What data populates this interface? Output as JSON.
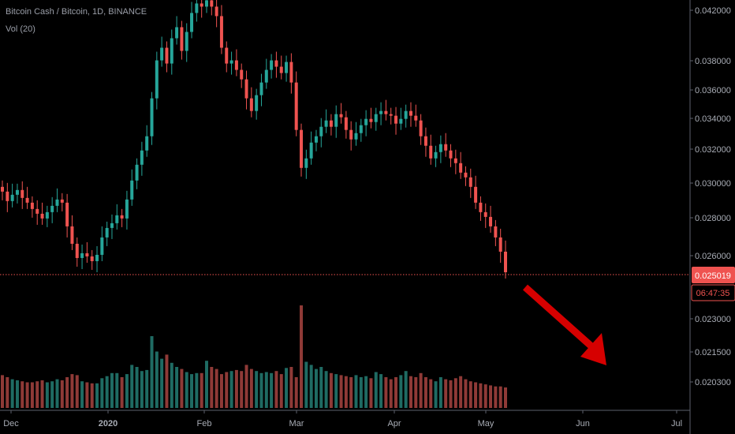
{
  "chart_data": {
    "type": "candlestick",
    "title": "Bitcoin Cash / Bitcoin, 1D, BINANCE",
    "volume_label": "Vol (20)",
    "x_ticks": [
      "Dec",
      "2020",
      "Feb",
      "Mar",
      "Apr",
      "May",
      "Jun",
      "Jul"
    ],
    "price_ticks": [
      "0.042000",
      "0.038000",
      "0.036000",
      "0.034000",
      "0.032000",
      "0.030000",
      "0.028000",
      "0.026000"
    ],
    "volume_ticks": [
      "0.023000",
      "0.021500",
      "0.020300"
    ],
    "last_price": "0.025019",
    "countdown": "06:47:35",
    "price_range": [
      0.02475,
      0.04222
    ],
    "last_price_value": 0.025019,
    "closes": [
      0.0301,
      0.0295,
      0.0299,
      0.0302,
      0.0297,
      0.0294,
      0.029,
      0.0287,
      0.0284,
      0.0288,
      0.0292,
      0.0296,
      0.0294,
      0.0279,
      0.0268,
      0.0259,
      0.0262,
      0.026,
      0.0257,
      0.0261,
      0.0272,
      0.0278,
      0.0281,
      0.0286,
      0.0284,
      0.0296,
      0.0308,
      0.0318,
      0.0327,
      0.0336,
      0.036,
      0.0384,
      0.0392,
      0.0382,
      0.0398,
      0.0405,
      0.039,
      0.0402,
      0.0414,
      0.042,
      0.0418,
      0.0422,
      0.0418,
      0.0412,
      0.0392,
      0.0382,
      0.0384,
      0.0378,
      0.0372,
      0.036,
      0.0352,
      0.0362,
      0.037,
      0.0378,
      0.0384,
      0.038,
      0.0376,
      0.0383,
      0.037,
      0.034,
      0.0316,
      0.0322,
      0.0332,
      0.0336,
      0.0342,
      0.0346,
      0.0342,
      0.035,
      0.0348,
      0.034,
      0.0334,
      0.0338,
      0.0343,
      0.0347,
      0.0345,
      0.035,
      0.0352,
      0.035,
      0.0349,
      0.0344,
      0.0347,
      0.0352,
      0.0349,
      0.0346,
      0.0336,
      0.033,
      0.0322,
      0.0326,
      0.0331,
      0.0327,
      0.0322,
      0.0319,
      0.0313,
      0.031,
      0.0304,
      0.0294,
      0.0288,
      0.0285,
      0.0279,
      0.0272,
      0.0263,
      0.025
    ],
    "volumes": [
      0.32,
      0.3,
      0.28,
      0.27,
      0.26,
      0.25,
      0.25,
      0.26,
      0.27,
      0.25,
      0.26,
      0.28,
      0.27,
      0.3,
      0.33,
      0.32,
      0.26,
      0.25,
      0.24,
      0.24,
      0.29,
      0.31,
      0.34,
      0.34,
      0.3,
      0.33,
      0.42,
      0.4,
      0.36,
      0.37,
      0.7,
      0.55,
      0.48,
      0.52,
      0.44,
      0.4,
      0.38,
      0.35,
      0.33,
      0.34,
      0.34,
      0.46,
      0.4,
      0.38,
      0.33,
      0.35,
      0.36,
      0.37,
      0.36,
      0.42,
      0.38,
      0.36,
      0.34,
      0.35,
      0.34,
      0.36,
      0.33,
      0.39,
      0.4,
      0.3,
      1.0,
      0.45,
      0.42,
      0.38,
      0.4,
      0.36,
      0.34,
      0.33,
      0.32,
      0.31,
      0.3,
      0.32,
      0.3,
      0.31,
      0.29,
      0.35,
      0.33,
      0.3,
      0.28,
      0.3,
      0.32,
      0.36,
      0.31,
      0.3,
      0.34,
      0.3,
      0.28,
      0.26,
      0.3,
      0.28,
      0.27,
      0.29,
      0.31,
      0.28,
      0.26,
      0.25,
      0.24,
      0.23,
      0.22,
      0.21,
      0.21,
      0.2
    ],
    "colors": {
      "up": "#26a69a",
      "down": "#ef5350",
      "up_volume": "#1f6b63",
      "down_volume": "#8f3a37",
      "last_price_bg": "#ef5350",
      "arrow": "#e00000",
      "axis_text": "#a8acb5"
    }
  }
}
